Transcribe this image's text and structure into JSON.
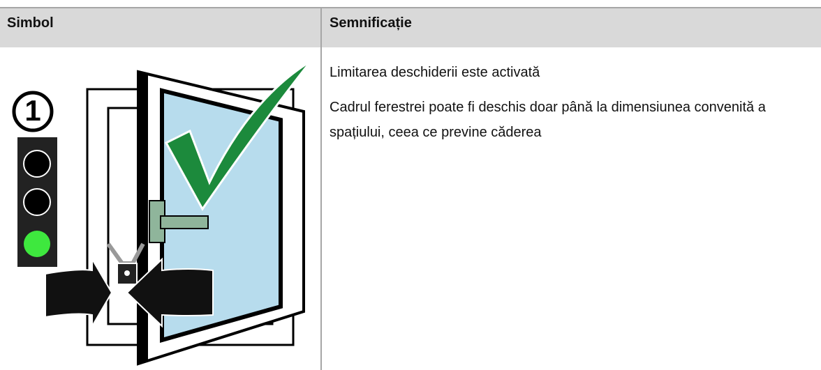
{
  "table": {
    "header": [
      "Simbol",
      "Semnificație"
    ],
    "rows": [
      {
        "symbol": {
          "step": "1"
        },
        "meaning": [
          "Limitarea deschiderii este activată",
          "Cadrul ferestrei poate fi deschis doar până la dimensiunea convenită a spațiului, ceea ce previne căderea"
        ]
      }
    ]
  }
}
